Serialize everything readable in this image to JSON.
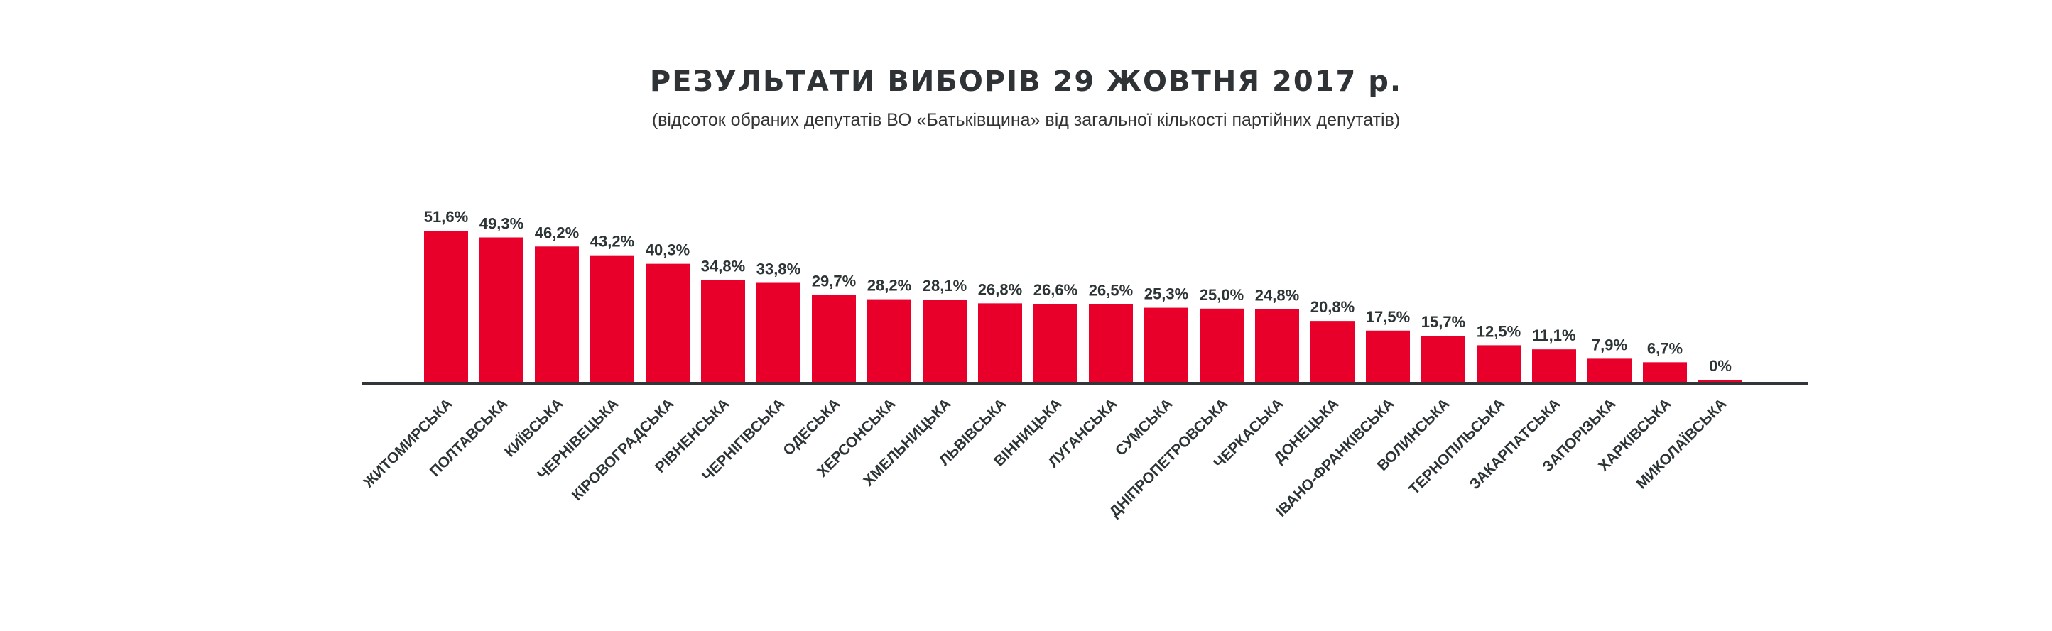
{
  "chart_data": {
    "type": "bar",
    "title": "РЕЗУЛЬТАТИ ВИБОРІВ 29 ЖОВТНЯ 2017 р.",
    "subtitle": "(відсоток обраних депутатів ВО «Батьківщина» від загальної кількості партійних депутатів)",
    "xlabel": "",
    "ylabel": "",
    "ylim": [
      0,
      55
    ],
    "grid": false,
    "bar_color": "#e8002a",
    "axis_color": "#333638",
    "categories": [
      "ЖИТОМИРСЬКА",
      "ПОЛТАВСЬКА",
      "КИЇВСЬКА",
      "ЧЕРНІВЕЦЬКА",
      "КІРОВОГРАДСЬКА",
      "РІВНЕНСЬКА",
      "ЧЕРНІГІВСЬКА",
      "ОДЕСЬКА",
      "ХЕРСОНСЬКА",
      "ХМЕЛЬНИЦЬКА",
      "ЛЬВІВСЬКА",
      "ВІННИЦЬКА",
      "ЛУГАНСЬКА",
      "СУМСЬКА",
      "ДНІПРОПЕТРОВСЬКА",
      "ЧЕРКАСЬКА",
      "ДОНЕЦЬКА",
      "ІВАНО-ФРАНКІВСЬКА",
      "ВОЛИНСЬКА",
      "ТЕРНОПІЛЬСЬКА",
      "ЗАКАРПАТСЬКА",
      "ЗАПОРІЗЬКА",
      "ХАРКІВСЬКА",
      "МИКОЛАЇВСЬКА"
    ],
    "values": [
      51.6,
      49.3,
      46.2,
      43.2,
      40.3,
      34.8,
      33.8,
      29.7,
      28.2,
      28.1,
      26.8,
      26.6,
      26.5,
      25.3,
      25.0,
      24.8,
      20.8,
      17.5,
      15.7,
      12.5,
      11.1,
      7.9,
      6.7,
      0
    ],
    "labels": [
      "51,6%",
      "49,3%",
      "46,2%",
      "43,2%",
      "40,3%",
      "34,8%",
      "33,8%",
      "29,7%",
      "28,2%",
      "28,1%",
      "26,8%",
      "26,6%",
      "26,5%",
      "25,3%",
      "25,0%",
      "24,8%",
      "20,8%",
      "17,5%",
      "15,7%",
      "12,5%",
      "11,1%",
      "7,9%",
      "6,7%",
      "0%"
    ]
  }
}
